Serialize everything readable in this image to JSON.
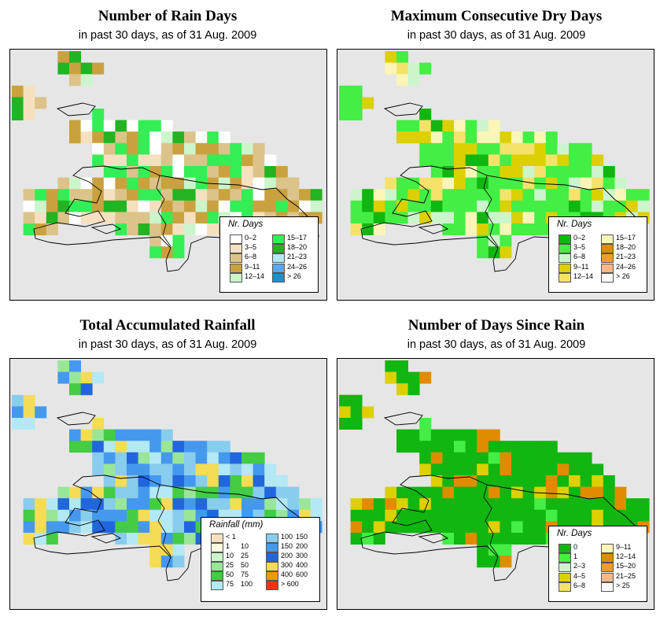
{
  "panels": [
    {
      "id": "rain_days",
      "title": "Number of Rain Days",
      "subtitle": "in past 30 days, as of  31 Aug. 2009",
      "legend": {
        "title": "Nr. Days",
        "items": [
          {
            "label": "0–2",
            "color": "#ffffff"
          },
          {
            "label": "3–5",
            "color": "#f5e0c0"
          },
          {
            "label": "6–8",
            "color": "#dcc38a"
          },
          {
            "label": "9–11",
            "color": "#c9a23f"
          },
          {
            "label": "12–14",
            "color": "#ccf5cc"
          },
          {
            "label": "15–17",
            "color": "#33ee55"
          },
          {
            "label": "18–20",
            "color": "#22b422"
          },
          {
            "label": "21–23",
            "color": "#b3e8f5"
          },
          {
            "label": "24–26",
            "color": "#55aaee"
          },
          {
            "label": "> 26",
            "color": "#1f8fcf"
          }
        ]
      }
    },
    {
      "id": "dry_days",
      "title": "Maximum Consecutive Dry Days",
      "subtitle": "in past 30 days, as of  31 Aug. 2009",
      "legend": {
        "title": "Nr. Days",
        "items": [
          {
            "label": "0–2",
            "color": "#11b611"
          },
          {
            "label": "3–5",
            "color": "#44ee44"
          },
          {
            "label": "6–8",
            "color": "#ccf5cc"
          },
          {
            "label": "9–11",
            "color": "#dcd000"
          },
          {
            "label": "12–14",
            "color": "#f5e26a"
          },
          {
            "label": "15–17",
            "color": "#fbf5b8"
          },
          {
            "label": "18–20",
            "color": "#e08c00"
          },
          {
            "label": "21–23",
            "color": "#ee9e22"
          },
          {
            "label": "24–26",
            "color": "#f7b889"
          },
          {
            "label": "> 26",
            "color": "#ffffff"
          }
        ]
      }
    },
    {
      "id": "rainfall",
      "title": "Total Accumulated Rainfall",
      "subtitle": "in past 30 days, as of  31 Aug. 2009",
      "legend": {
        "title": "Rainfall (mm)",
        "items": [
          {
            "lo": "< 1",
            "hi": "",
            "color": "#f5e0c0"
          },
          {
            "lo": "1",
            "hi": "10",
            "color": "#fcfce0"
          },
          {
            "lo": "10",
            "hi": "25",
            "color": "#ccf5cc"
          },
          {
            "lo": "25",
            "hi": "50",
            "color": "#99e699"
          },
          {
            "lo": "50",
            "hi": "75",
            "color": "#44cc44"
          },
          {
            "lo": "75",
            "hi": "100",
            "color": "#b3e8f5"
          },
          {
            "lo": "100",
            "hi": "150",
            "color": "#88ccee"
          },
          {
            "lo": "150",
            "hi": "200",
            "color": "#4499ee"
          },
          {
            "lo": "200",
            "hi": "300",
            "color": "#2266dd"
          },
          {
            "lo": "300",
            "hi": "400",
            "color": "#f5dc55"
          },
          {
            "lo": "400",
            "hi": "600",
            "color": "#ee9900"
          },
          {
            "lo": "> 600",
            "hi": "",
            "color": "#ee3311"
          }
        ]
      }
    },
    {
      "id": "since_rain",
      "title": "Number of Days Since Rain",
      "subtitle": "in past 30 days, as of  31 Aug. 2009",
      "legend": {
        "title": "Nr. Days",
        "items": [
          {
            "label": "0",
            "color": "#11b611"
          },
          {
            "label": "1",
            "color": "#44ee44"
          },
          {
            "label": "2–3",
            "color": "#ccf5cc"
          },
          {
            "label": "4–5",
            "color": "#dcd000"
          },
          {
            "label": "6–8",
            "color": "#f5e26a"
          },
          {
            "label": "9–11",
            "color": "#fbf5b8"
          },
          {
            "label": "12–14",
            "color": "#e08c00"
          },
          {
            "label": "15–20",
            "color": "#ee9e22"
          },
          {
            "label": "21–25",
            "color": "#f7b889"
          },
          {
            "label": "> 25",
            "color": "#ffffff"
          }
        ]
      }
    }
  ]
}
